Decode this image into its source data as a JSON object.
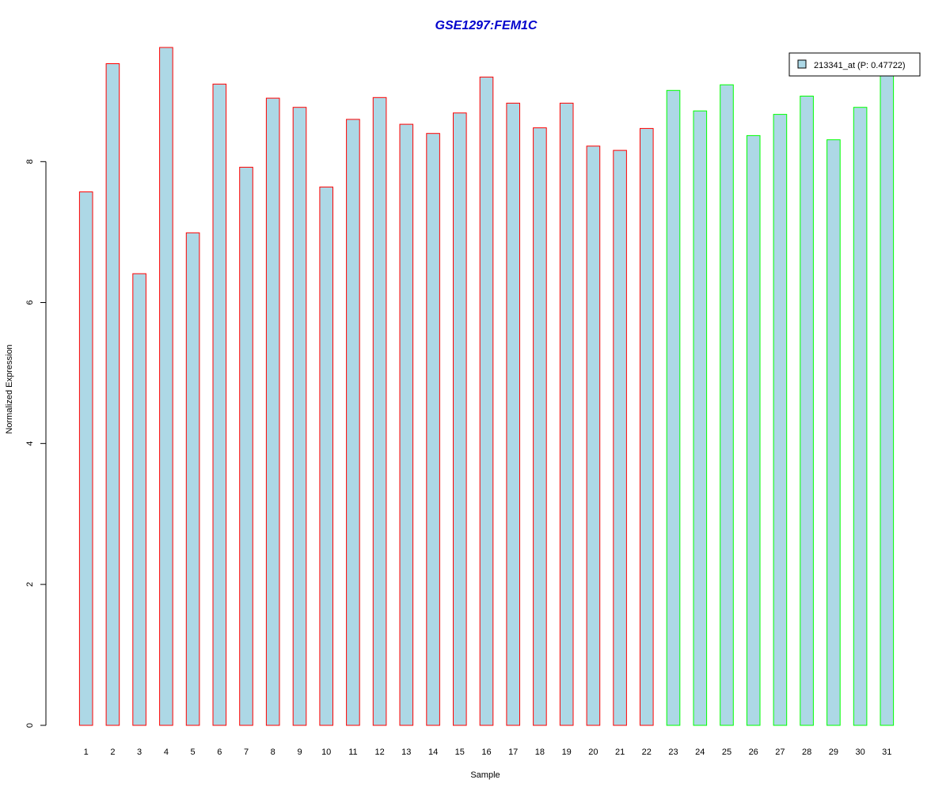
{
  "chart_data": {
    "type": "bar",
    "title": "GSE1297:FEM1C",
    "xlabel": "Sample",
    "ylabel": "Normalized Expression",
    "categories": [
      "1",
      "2",
      "3",
      "4",
      "5",
      "6",
      "7",
      "8",
      "9",
      "10",
      "11",
      "12",
      "13",
      "14",
      "15",
      "16",
      "17",
      "18",
      "19",
      "20",
      "21",
      "22",
      "23",
      "24",
      "25",
      "26",
      "27",
      "28",
      "29",
      "30",
      "31"
    ],
    "values": [
      7.57,
      9.39,
      6.41,
      9.62,
      6.99,
      9.1,
      7.92,
      8.9,
      8.77,
      7.64,
      8.6,
      8.91,
      8.53,
      8.4,
      8.69,
      9.2,
      8.83,
      8.48,
      8.83,
      8.22,
      8.16,
      8.47,
      9.01,
      8.72,
      9.09,
      8.37,
      8.67,
      8.93,
      8.31,
      8.77,
      9.3
    ],
    "group_index": [
      0,
      0,
      0,
      0,
      0,
      0,
      0,
      0,
      0,
      0,
      0,
      0,
      0,
      0,
      0,
      0,
      0,
      0,
      0,
      0,
      0,
      0,
      1,
      1,
      1,
      1,
      1,
      1,
      1,
      1,
      1
    ],
    "ylim": [
      0,
      9.62
    ],
    "yticks": [
      0,
      2,
      4,
      6,
      8
    ],
    "grid": false,
    "legend_placement": "top-right",
    "legend": {
      "label": "213341_at (P: 0.47722)",
      "fill": "#add8e6"
    },
    "colors": {
      "bar_fill": "#add8e6",
      "group_borders": [
        "#ff0000",
        "#00ff00"
      ],
      "title": "#0000cc",
      "axis": "#000000"
    }
  }
}
